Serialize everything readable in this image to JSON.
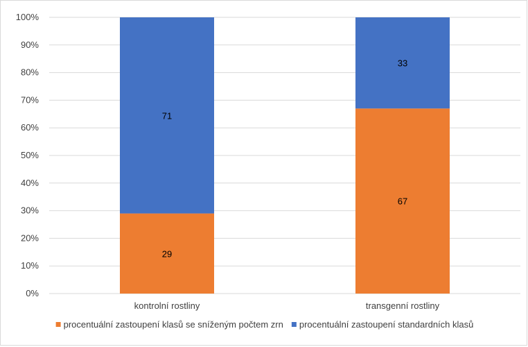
{
  "chart_data": {
    "type": "bar",
    "stacked": true,
    "percent_axis": true,
    "categories": [
      "kontrolní rostliny",
      "transgenní rostliny"
    ],
    "series": [
      {
        "name": "procentuální zastoupení klasů se sníženým počtem zrn",
        "values": [
          29,
          67
        ],
        "color": "#ED7D31"
      },
      {
        "name": "procentuální zastoupení standardních klasů",
        "values": [
          71,
          33
        ],
        "color": "#4472C4"
      }
    ],
    "y_ticks": [
      "0%",
      "10%",
      "20%",
      "30%",
      "40%",
      "50%",
      "60%",
      "70%",
      "80%",
      "90%",
      "100%"
    ],
    "ylim": [
      0,
      100
    ],
    "grid": true,
    "legend_position": "bottom",
    "data_labels": true
  }
}
